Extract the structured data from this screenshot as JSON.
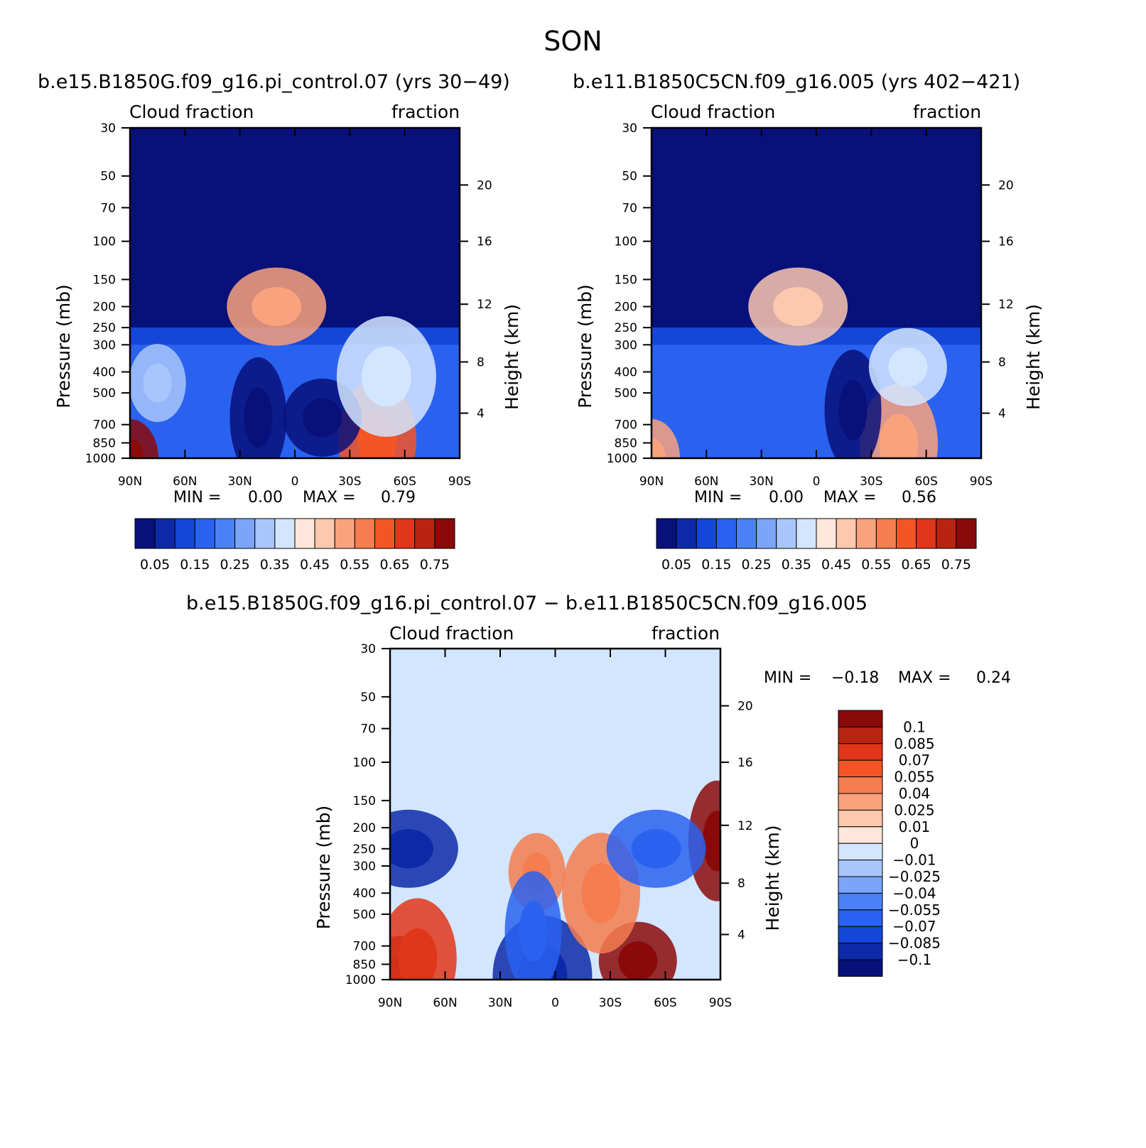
{
  "figure": {
    "season": "SON"
  },
  "colors": {
    "abs_scale": [
      "#08107a",
      "#0c2aa8",
      "#1446d8",
      "#2a62f0",
      "#4a82f6",
      "#7aa5f8",
      "#a9c6fc",
      "#d3e6ff",
      "#fee7da",
      "#fcc8ae",
      "#f9a27e",
      "#f57d4f",
      "#f35526",
      "#e0361a",
      "#b92311",
      "#8a0a0a"
    ],
    "diff_scale": [
      "#08107a",
      "#0c2aa8",
      "#1446d8",
      "#2a62f0",
      "#4a82f6",
      "#7aa5f8",
      "#a9c6fc",
      "#d3e6ff",
      "#fee7da",
      "#fcc8ae",
      "#f9a27e",
      "#f57d4f",
      "#f35526",
      "#e0361a",
      "#b92311",
      "#8a0a0a"
    ]
  },
  "chart_data": [
    {
      "type": "heatmap",
      "title": "b.e15.B1850G.f09_g16.pi_control.07 (yrs 30−49)",
      "left_label": "Cloud fraction",
      "right_label": "fraction",
      "ylabel": "Pressure (mb)",
      "ylabel_right": "Height (km)",
      "x_ticks": [
        "90N",
        "60N",
        "30N",
        "0",
        "30S",
        "60S",
        "90S"
      ],
      "x_range": [
        90,
        -90
      ],
      "y_ticks": [
        "30",
        "50",
        "70",
        "100",
        "150",
        "200",
        "250",
        "300",
        "400",
        "500",
        "700",
        "850",
        "1000"
      ],
      "y_tick_values": [
        30,
        50,
        70,
        100,
        150,
        200,
        250,
        300,
        400,
        500,
        700,
        850,
        1000
      ],
      "y_range": [
        30,
        1000
      ],
      "y_scale": "log",
      "height_ticks": [
        "20",
        "16",
        "12",
        "8",
        "4"
      ],
      "min_label": "MIN =",
      "min_value": "0.00",
      "max_label": "MAX =",
      "max_value": "0.79",
      "levels": [
        0.05,
        0.1,
        0.15,
        0.2,
        0.25,
        0.3,
        0.35,
        0.4,
        0.45,
        0.5,
        0.55,
        0.6,
        0.65,
        0.7,
        0.75
      ],
      "colorbar_labels": [
        "0.05",
        "0.15",
        "0.25",
        "0.35",
        "0.45",
        "0.55",
        "0.65",
        "0.75"
      ],
      "features": [
        {
          "lat": 90,
          "p": 1000,
          "value": 0.79
        },
        {
          "lat": -45,
          "p": 820,
          "value": 0.6
        },
        {
          "lat": 10,
          "p": 200,
          "value": 0.5
        },
        {
          "lat": 20,
          "p": 650,
          "value": 0.04
        },
        {
          "lat": -15,
          "p": 650,
          "value": 0.03
        },
        {
          "lat": -50,
          "p": 420,
          "value": 0.35
        },
        {
          "lat": 75,
          "p": 450,
          "value": 0.3
        }
      ]
    },
    {
      "type": "heatmap",
      "title": "b.e11.B1850C5CN.f09_g16.005 (yrs 402−421)",
      "left_label": "Cloud fraction",
      "right_label": "fraction",
      "ylabel": "Pressure (mb)",
      "ylabel_right": "Height (km)",
      "x_ticks": [
        "90N",
        "60N",
        "30N",
        "0",
        "30S",
        "60S",
        "90S"
      ],
      "x_range": [
        90,
        -90
      ],
      "y_ticks": [
        "30",
        "50",
        "70",
        "100",
        "150",
        "200",
        "250",
        "300",
        "400",
        "500",
        "700",
        "850",
        "1000"
      ],
      "y_tick_values": [
        30,
        50,
        70,
        100,
        150,
        200,
        250,
        300,
        400,
        500,
        700,
        850,
        1000
      ],
      "y_range": [
        30,
        1000
      ],
      "y_scale": "log",
      "height_ticks": [
        "20",
        "16",
        "12",
        "8",
        "4"
      ],
      "min_label": "MIN =",
      "min_value": "0.00",
      "max_label": "MAX =",
      "max_value": "0.56",
      "levels": [
        0.05,
        0.1,
        0.15,
        0.2,
        0.25,
        0.3,
        0.35,
        0.4,
        0.45,
        0.5,
        0.55,
        0.6,
        0.65,
        0.7,
        0.75
      ],
      "colorbar_labels": [
        "0.05",
        "0.15",
        "0.25",
        "0.35",
        "0.45",
        "0.55",
        "0.65",
        "0.75"
      ],
      "features": [
        {
          "lat": 90,
          "p": 1000,
          "value": 0.5
        },
        {
          "lat": -45,
          "p": 860,
          "value": 0.5
        },
        {
          "lat": 10,
          "p": 200,
          "value": 0.45
        },
        {
          "lat": -20,
          "p": 600,
          "value": 0.04
        },
        {
          "lat": -50,
          "p": 380,
          "value": 0.35
        }
      ]
    },
    {
      "type": "heatmap",
      "title": "b.e15.B1850G.f09_g16.pi_control.07 − b.e11.B1850C5CN.f09_g16.005",
      "left_label": "Cloud fraction",
      "right_label": "fraction",
      "ylabel": "Pressure (mb)",
      "ylabel_right": "Height (km)",
      "x_ticks": [
        "90N",
        "60N",
        "30N",
        "0",
        "30S",
        "60S",
        "90S"
      ],
      "x_range": [
        90,
        -90
      ],
      "y_ticks": [
        "30",
        "50",
        "70",
        "100",
        "150",
        "200",
        "250",
        "300",
        "400",
        "500",
        "700",
        "850",
        "1000"
      ],
      "y_tick_values": [
        30,
        50,
        70,
        100,
        150,
        200,
        250,
        300,
        400,
        500,
        700,
        850,
        1000
      ],
      "y_range": [
        30,
        1000
      ],
      "y_scale": "log",
      "height_ticks": [
        "20",
        "16",
        "12",
        "8",
        "4"
      ],
      "min_label": "MIN =",
      "min_value": "−0.18",
      "max_label": "MAX =",
      "max_value": "0.24",
      "levels": [
        -0.1,
        -0.085,
        -0.07,
        -0.055,
        -0.04,
        -0.025,
        -0.01,
        0,
        0.01,
        0.025,
        0.04,
        0.055,
        0.07,
        0.085,
        0.1
      ],
      "colorbar_labels": [
        "0.1",
        "0.085",
        "0.07",
        "0.055",
        "0.04",
        "0.025",
        "0.01",
        "0",
        "−0.01",
        "−0.025",
        "−0.04",
        "−0.055",
        "−0.07",
        "−0.085",
        "−0.1"
      ],
      "features": [
        {
          "lat": 85,
          "p": 950,
          "value": 0.12
        },
        {
          "lat": 75,
          "p": 800,
          "value": 0.07
        },
        {
          "lat": 80,
          "p": 250,
          "value": -0.1
        },
        {
          "lat": -88,
          "p": 230,
          "value": 0.12
        },
        {
          "lat": -45,
          "p": 820,
          "value": 0.1
        },
        {
          "lat": 7,
          "p": 960,
          "value": -0.1
        },
        {
          "lat": 10,
          "p": 320,
          "value": 0.05
        },
        {
          "lat": -25,
          "p": 400,
          "value": 0.05
        },
        {
          "lat": -55,
          "p": 250,
          "value": -0.06
        },
        {
          "lat": 12,
          "p": 600,
          "value": -0.06
        }
      ]
    }
  ]
}
